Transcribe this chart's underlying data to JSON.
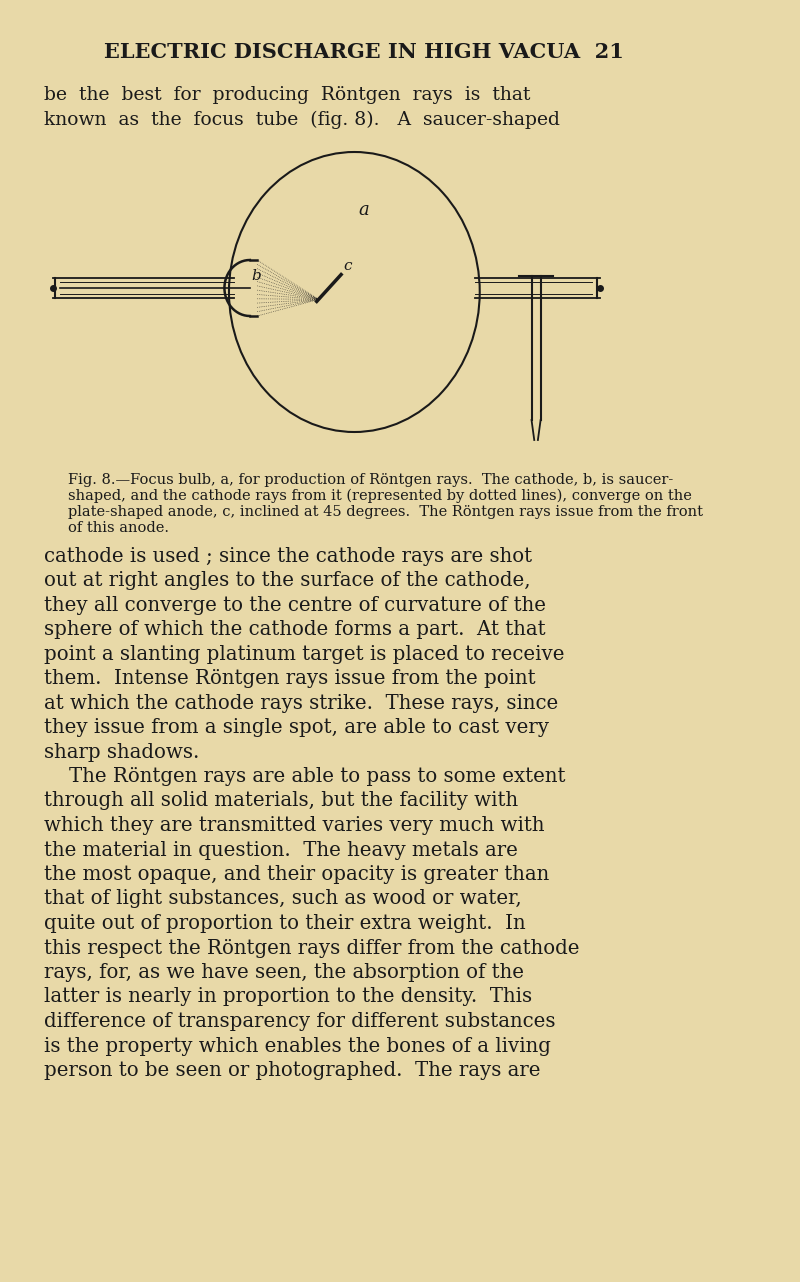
{
  "bg_color": "#e8d9a8",
  "text_color": "#1a1a1a",
  "page_title": "ELECTRIC DISCHARGE IN HIGH VACUA  21",
  "intro_text": "be  the  best  for  producing  Röntgen  rays  is  that\nknown  as  the  focus  tube  (fig. 8).   A  saucer-shaped",
  "caption_text": "Fig. 8.—Focus bulb, a, for production of Röntgen rays.  The cathode, b, is saucer-\nshaped, and the cathode rays from it (represented by dotted lines), converge on the\nplate-shaped anode, c, inclined at 45 degrees.  The Röntgen rays issue from the front\nof this anode.",
  "body_text": "cathode is used ; since the cathode rays are shot\nout at right angles to the surface of the cathode,\nthey all converge to the centre of curvature of the\nsphere of which the cathode forms a part.  At that\npoint a slanting platinum target is placed to receive\nthem.  Intense Röntgen rays issue from the point\nat which the cathode rays strike.  These rays, since\nthey issue from a single spot, are able to cast very\nsharp shadows.\n    The Röntgen rays are able to pass to some extent\nthrough all solid materials, but the facility with\nwhich they are transmitted varies very much with\nthe material in question.  The heavy metals are\nthe most opaque, and their opacity is greater than\nthat of light substances, such as wood or water,\nquite out of proportion to their extra weight.  In\nthis respect the Röntgen rays differ from the cathode\nrays, for, as we have seen, the absorption of the\nlatter is nearly in proportion to the density.  This\ndifference of transparency for different substances\nis the property which enables the bones of a living\nperson to be seen or photographed.  The rays are"
}
